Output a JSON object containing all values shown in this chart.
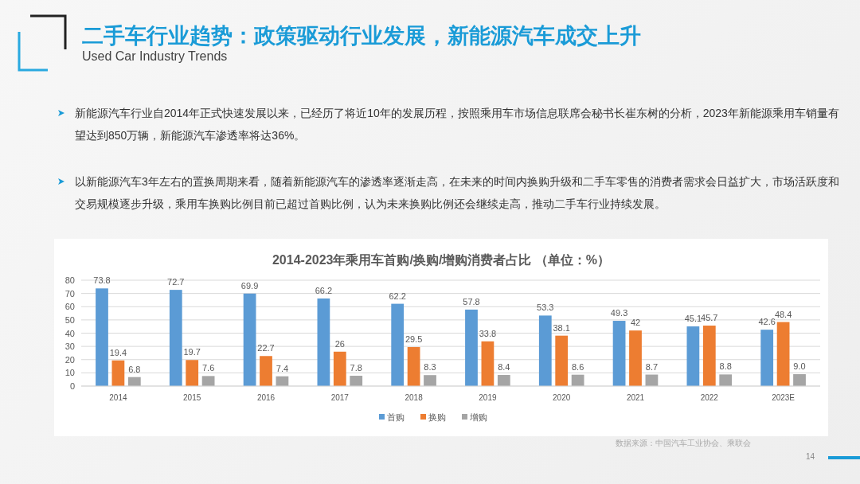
{
  "chart_data": {
    "type": "bar",
    "title": "2014-2023年乘用车首购/换购/增购消费者占比 （单位：%）",
    "categories": [
      "2014",
      "2015",
      "2016",
      "2017",
      "2018",
      "2019",
      "2020",
      "2021",
      "2022",
      "2023E"
    ],
    "series": [
      {
        "name": "首购",
        "color": "#5b9bd5",
        "values": [
          73.8,
          72.7,
          69.9,
          66.2,
          62.2,
          57.8,
          53.3,
          49.3,
          45.1,
          42.6
        ],
        "value_labels": [
          "73.8",
          "72.7",
          "69.9",
          "66.2",
          "62.2",
          "57.8",
          "53.3",
          "49.3",
          "45.1",
          "42.6"
        ]
      },
      {
        "name": "换购",
        "color": "#ed7d31",
        "values": [
          19.4,
          19.7,
          22.7,
          26,
          29.5,
          33.8,
          38.1,
          42,
          45.7,
          48.4
        ],
        "value_labels": [
          "19.4",
          "19.7",
          "22.7",
          "26",
          "29.5",
          "33.8",
          "38.1",
          "42",
          "45.7",
          "48.4"
        ]
      },
      {
        "name": "增购",
        "color": "#a5a5a5",
        "values": [
          6.8,
          7.6,
          7.4,
          7.8,
          8.3,
          8.4,
          8.6,
          8.7,
          8.8,
          9.0
        ],
        "value_labels": [
          "6.8",
          "7.6",
          "7.4",
          "7.8",
          "8.3",
          "8.4",
          "8.6",
          "8.7",
          "8.8",
          "9.0"
        ]
      }
    ],
    "ylim": [
      0,
      80
    ],
    "yticks": [
      0,
      10,
      20,
      30,
      40,
      50,
      60,
      70,
      80
    ],
    "grid": "y",
    "legend": "bottom",
    "annotations": [
      "二手车行业趋势：政策驱动行业发展，新能源汽车成交上升",
      "Used Car Industry Trends",
      "新能源汽车行业自2014年正式快速发展以来，已经历了将近10年的发展历程，按照乘用车市场信息联席会秘书长崔东树的分析，2023年新能源乘用车销量有望达到850万辆，新能源汽车渗透率将达36%。",
      "以新能源汽车3年左右的置换周期来看，随着新能源汽车的渗透率逐渐走高，在未来的时间内换购升级和二手车零售的消费者需求会日益扩大，市场活跃度和交易规模逐步升级，乘用车换购比例目前已超过首购比例，认为未来换购比例还会继续走高，推动二手车行业持续发展。",
      "数据来源：中国汽车工业协会、乘联会",
      "14"
    ]
  }
}
